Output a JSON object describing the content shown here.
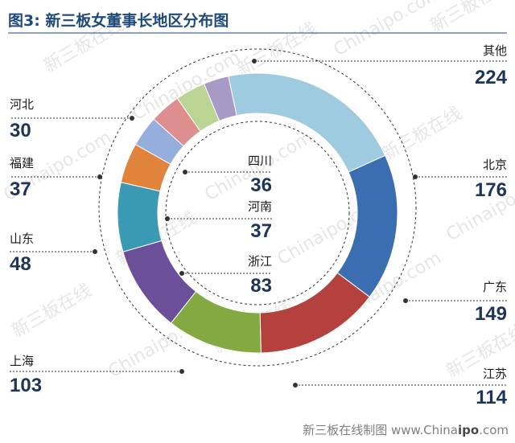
{
  "title": "图3: 新三板女董事长地区分布图",
  "footer": {
    "prefix": "新三板在线制图 www.China",
    "bold": "ipo",
    "suffix": ".com"
  },
  "watermark": {
    "cn": "新三板在线",
    "en": "Chinaipo.com"
  },
  "chart_data": {
    "type": "pie",
    "style": "donut",
    "title": "图3: 新三板女董事长地区分布图",
    "slices": [
      {
        "label": "其他",
        "value": 224,
        "color": "#9fcbe0"
      },
      {
        "label": "北京",
        "value": 176,
        "color": "#3b6eb0"
      },
      {
        "label": "广东",
        "value": 149,
        "color": "#b5413f"
      },
      {
        "label": "江苏",
        "value": 114,
        "color": "#84a943"
      },
      {
        "label": "上海",
        "value": 103,
        "color": "#6b4f99"
      },
      {
        "label": "浙江",
        "value": 83,
        "color": "#3a9ab3"
      },
      {
        "label": "山东",
        "value": 48,
        "color": "#e0843b"
      },
      {
        "label": "河南",
        "value": 37,
        "color": "#95aedb"
      },
      {
        "label": "福建",
        "value": 37,
        "color": "#dd8f8f"
      },
      {
        "label": "四川",
        "value": 36,
        "color": "#bcd595"
      },
      {
        "label": "河北",
        "value": 30,
        "color": "#a899c7"
      }
    ]
  }
}
